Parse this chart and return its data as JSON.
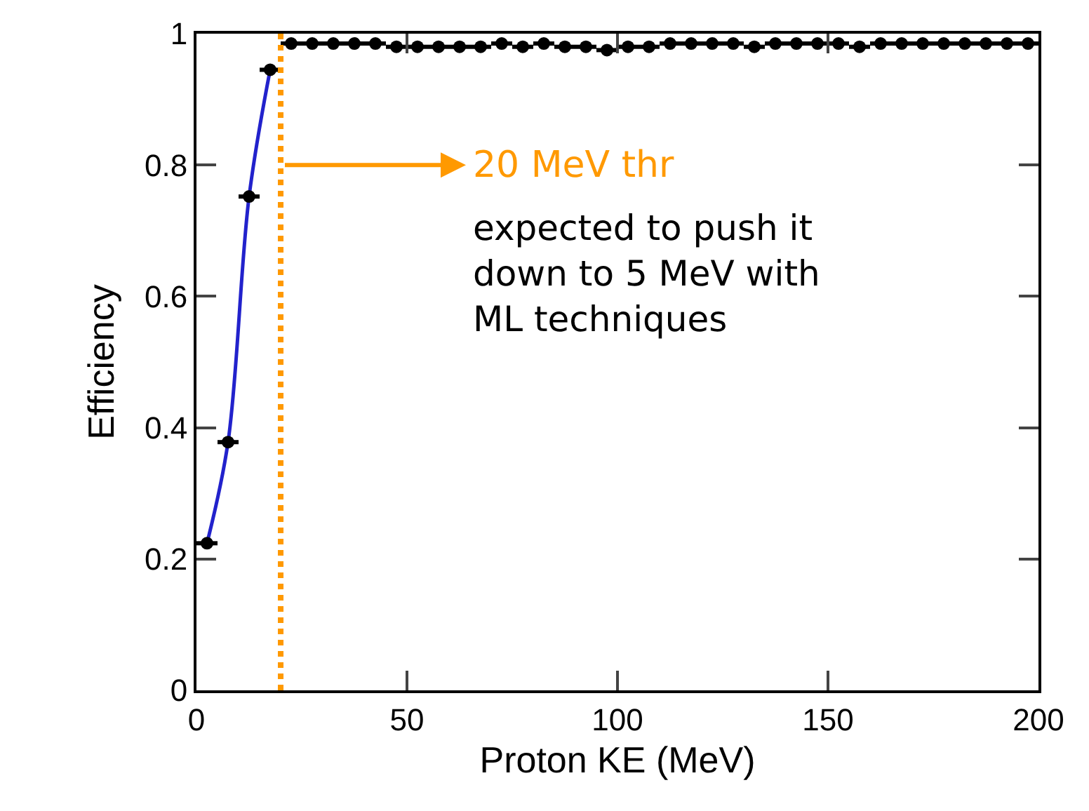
{
  "chart_data": {
    "type": "scatter",
    "xlabel": "Proton KE (MeV)",
    "ylabel": "Efficiency",
    "xlim": [
      0,
      200
    ],
    "xticks": [
      0,
      50,
      100,
      150,
      200
    ],
    "ylim": [
      0,
      1
    ],
    "yticks": [
      0,
      0.2,
      0.4,
      0.6,
      0.8,
      1
    ],
    "grid": false,
    "legend": false,
    "marker": "circle",
    "series": [
      {
        "type": "line",
        "marker": "none",
        "color": "#2222cc",
        "x": [
          2.5,
          7.5,
          12.5,
          17.5
        ],
        "values": [
          0.224,
          0.378,
          0.752,
          0.945
        ]
      },
      {
        "color": "#000000",
        "x": [
          2.5,
          7.5,
          12.5,
          17.5,
          22.5,
          27.5,
          32.5,
          37.5,
          42.5,
          47.5,
          52.5,
          57.5,
          62.5,
          67.5,
          72.5,
          77.5,
          82.5,
          87.5,
          92.5,
          97.5,
          102.5,
          107.5,
          112.5,
          117.5,
          122.5,
          127.5,
          132.5,
          137.5,
          142.5,
          147.5,
          152.5,
          157.5,
          162.5,
          167.5,
          172.5,
          177.5,
          182.5,
          187.5,
          192.5,
          197.5
        ],
        "values": [
          0.224,
          0.378,
          0.752,
          0.945,
          0.985,
          0.985,
          0.985,
          0.985,
          0.985,
          0.98,
          0.98,
          0.98,
          0.98,
          0.98,
          0.985,
          0.98,
          0.985,
          0.98,
          0.98,
          0.975,
          0.98,
          0.98,
          0.985,
          0.985,
          0.985,
          0.985,
          0.98,
          0.985,
          0.985,
          0.985,
          0.985,
          0.98,
          0.985,
          0.985,
          0.985,
          0.985,
          0.985,
          0.985,
          0.985,
          0.985
        ],
        "xerrors": [
          2.5,
          2.5,
          2.5,
          2.5,
          2.5,
          2.5,
          2.5,
          2.5,
          2.5,
          2.5,
          2.5,
          2.5,
          2.5,
          2.5,
          2.5,
          2.5,
          2.5,
          2.5,
          2.5,
          2.5,
          2.5,
          2.5,
          2.5,
          2.5,
          2.5,
          2.5,
          2.5,
          2.5,
          2.5,
          2.5,
          2.5,
          2.5,
          2.5,
          2.5,
          2.5,
          2.5,
          2.5,
          2.5,
          2.5,
          2.5
        ]
      }
    ],
    "ref_lines": [
      {
        "axis": "x",
        "value": 20,
        "label": "20 MeV thr",
        "color": "#ff9900",
        "line_style": "dotted"
      }
    ],
    "annotations": [
      "expected to push it\ndown to 5 MeV with\nML techniques"
    ]
  }
}
